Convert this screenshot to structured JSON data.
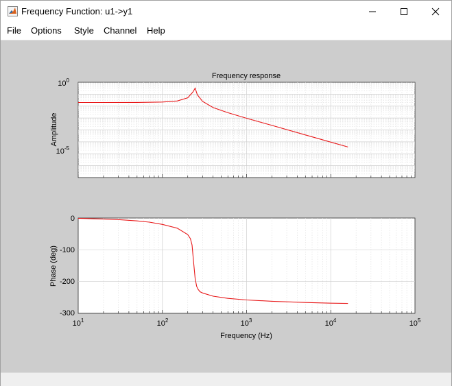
{
  "window": {
    "title": "Frequency Function: u1->y1"
  },
  "menu": [
    "File",
    "Options",
    "Style",
    "Channel",
    "Help"
  ],
  "icons": {
    "app": "matlab-logo-icon",
    "minimize": "minimize-icon",
    "maximize": "maximize-icon",
    "close": "close-icon"
  },
  "colors": {
    "curve": "#e8191a",
    "figure_bg": "#cdcdcd",
    "axes_bg": "#ffffff",
    "grid": "#d9d9d9"
  },
  "chart_data": [
    {
      "type": "line",
      "title": "Frequency response",
      "xlabel": "",
      "ylabel": "Amplitude",
      "xscale": "log",
      "yscale": "log",
      "xlim": [
        10,
        100000
      ],
      "ylim": [
        1e-08,
        1
      ],
      "ytick_labels": [
        "10^0",
        "10^-5"
      ],
      "grid": true,
      "series": [
        {
          "x": [
            10,
            20,
            50,
            100,
            150,
            200,
            230,
            245,
            260,
            300,
            400,
            600,
            1000,
            2000,
            5000,
            10000,
            16000
          ],
          "y": [
            0.02,
            0.0201,
            0.0204,
            0.022,
            0.027,
            0.05,
            0.15,
            0.32,
            0.09,
            0.025,
            0.0075,
            0.0028,
            0.00095,
            0.00024,
            3.8e-05,
            9.5e-06,
            3.7e-06
          ]
        }
      ]
    },
    {
      "type": "line",
      "xlabel": "Frequency (Hz)",
      "ylabel": "Phase (deg)",
      "xscale": "log",
      "xlim": [
        10,
        100000
      ],
      "ylim": [
        -300,
        0
      ],
      "xtick_labels": [
        "10^1",
        "10^2",
        "10^3",
        "10^4",
        "10^5"
      ],
      "ytick_labels": [
        "0",
        "-100",
        "-200",
        "-300"
      ],
      "grid": true,
      "series": [
        {
          "x": [
            10,
            20,
            30,
            50,
            70,
            100,
            150,
            200,
            215,
            225,
            235,
            245,
            255,
            265,
            280,
            300,
            400,
            600,
            1000,
            2000,
            5000,
            10000,
            16000
          ],
          "y": [
            -1,
            -3,
            -5,
            -9,
            -13,
            -20,
            -32,
            -52,
            -65,
            -85,
            -140,
            -190,
            -215,
            -224,
            -232,
            -236,
            -246,
            -253,
            -258,
            -262,
            -266,
            -268,
            -269
          ]
        }
      ]
    }
  ]
}
